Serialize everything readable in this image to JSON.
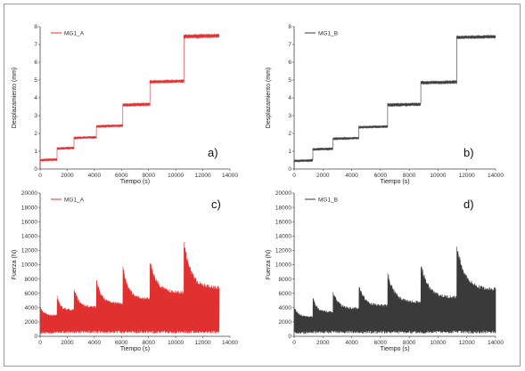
{
  "chart_data": [
    {
      "id": "a",
      "type": "line",
      "panel_label": "a)",
      "color": "#e03030",
      "xlabel": "Tiempo (s)",
      "ylabel": "Desplazamiento (mm)",
      "xlim": [
        0,
        14000
      ],
      "ylim": [
        0,
        8
      ],
      "xticks": [
        "0",
        "2000",
        "4000",
        "6000",
        "8000",
        "10000",
        "12000",
        "14000"
      ],
      "yticks": [
        "0",
        "1",
        "2",
        "3",
        "4",
        "5",
        "6",
        "7",
        "8"
      ],
      "legend_position": "top-left",
      "series": [
        {
          "name": "MG1_A",
          "steps": [
            {
              "t0": 0,
              "t1": 1250,
              "base": 0.5,
              "amp": 0.15
            },
            {
              "t0": 1250,
              "t1": 2500,
              "base": 1.15,
              "amp": 0.15
            },
            {
              "t0": 2500,
              "t1": 4150,
              "base": 1.75,
              "amp": 0.15
            },
            {
              "t0": 4150,
              "t1": 6100,
              "base": 2.4,
              "amp": 0.15
            },
            {
              "t0": 6100,
              "t1": 8100,
              "base": 3.6,
              "amp": 0.2
            },
            {
              "t0": 8100,
              "t1": 10600,
              "base": 4.9,
              "amp": 0.2
            },
            {
              "t0": 10600,
              "t1": 13200,
              "base": 7.45,
              "amp": 0.25
            }
          ]
        }
      ]
    },
    {
      "id": "b",
      "type": "line",
      "panel_label": "b)",
      "color": "#3a3a3a",
      "xlabel": "Tiempo (s)",
      "ylabel": "Desplazamiento (mm)",
      "xlim": [
        0,
        14000
      ],
      "ylim": [
        0,
        8
      ],
      "xticks": [
        "0",
        "2000",
        "4000",
        "6000",
        "8000",
        "10000",
        "12000",
        "14000"
      ],
      "yticks": [
        "0",
        "1",
        "2",
        "3",
        "4",
        "5",
        "6",
        "7",
        "8"
      ],
      "legend_position": "top-left",
      "series": [
        {
          "name": "MG1_B",
          "steps": [
            {
              "t0": 0,
              "t1": 1300,
              "base": 0.45,
              "amp": 0.15
            },
            {
              "t0": 1300,
              "t1": 2700,
              "base": 1.1,
              "amp": 0.15
            },
            {
              "t0": 2700,
              "t1": 4500,
              "base": 1.7,
              "amp": 0.15
            },
            {
              "t0": 4500,
              "t1": 6500,
              "base": 2.35,
              "amp": 0.15
            },
            {
              "t0": 6500,
              "t1": 8800,
              "base": 3.6,
              "amp": 0.2
            },
            {
              "t0": 8800,
              "t1": 11300,
              "base": 4.85,
              "amp": 0.2
            },
            {
              "t0": 11300,
              "t1": 14000,
              "base": 7.4,
              "amp": 0.2
            }
          ]
        }
      ]
    },
    {
      "id": "c",
      "type": "line",
      "panel_label": "c)",
      "color": "#e03030",
      "xlabel": "Tiempo (s)",
      "ylabel": "Fuerza (N)",
      "xlim": [
        0,
        14000
      ],
      "ylim": [
        0,
        20000
      ],
      "xticks": [
        "0",
        "2000",
        "4000",
        "6000",
        "8000",
        "10000",
        "12000",
        "14000"
      ],
      "yticks": [
        "0",
        "2000",
        "4000",
        "6000",
        "8000",
        "10000",
        "12000",
        "14000",
        "16000",
        "18000",
        "20000"
      ],
      "legend_position": "top-left",
      "series": [
        {
          "name": "MG1_A",
          "segments": [
            {
              "t0": 0,
              "t1": 1250,
              "peak": 4200,
              "top": 3000,
              "min": 600
            },
            {
              "t0": 1250,
              "t1": 2500,
              "peak": 5700,
              "top": 3800,
              "min": 700
            },
            {
              "t0": 2500,
              "t1": 4150,
              "peak": 6900,
              "top": 4200,
              "min": 700
            },
            {
              "t0": 4150,
              "t1": 6100,
              "peak": 7900,
              "top": 4700,
              "min": 700
            },
            {
              "t0": 6100,
              "t1": 8100,
              "peak": 9800,
              "top": 5400,
              "min": 700
            },
            {
              "t0": 8100,
              "t1": 10600,
              "peak": 10900,
              "top": 6300,
              "min": 700
            },
            {
              "t0": 10600,
              "t1": 13200,
              "peak": 13600,
              "top": 7000,
              "min": 700
            }
          ]
        }
      ]
    },
    {
      "id": "d",
      "type": "line",
      "panel_label": "d)",
      "color": "#3a3a3a",
      "xlabel": "Tiempo (s)",
      "ylabel": "Fuerza (N)",
      "xlim": [
        0,
        14000
      ],
      "ylim": [
        0,
        20000
      ],
      "xticks": [
        "0",
        "2000",
        "4000",
        "6000",
        "8000",
        "10000",
        "12000",
        "14000"
      ],
      "yticks": [
        "0",
        "2000",
        "4000",
        "6000",
        "8000",
        "10000",
        "12000",
        "14000",
        "16000",
        "18000",
        "20000"
      ],
      "legend_position": "top-left",
      "series": [
        {
          "name": "MG1_B",
          "segments": [
            {
              "t0": 0,
              "t1": 1300,
              "peak": 4200,
              "top": 2800,
              "min": 600
            },
            {
              "t0": 1300,
              "t1": 2700,
              "peak": 5500,
              "top": 3500,
              "min": 700
            },
            {
              "t0": 2700,
              "t1": 4500,
              "peak": 6400,
              "top": 4000,
              "min": 700
            },
            {
              "t0": 4500,
              "t1": 6500,
              "peak": 7300,
              "top": 4400,
              "min": 700
            },
            {
              "t0": 6500,
              "t1": 8800,
              "peak": 9000,
              "top": 4900,
              "min": 700
            },
            {
              "t0": 8800,
              "t1": 11300,
              "peak": 10400,
              "top": 5600,
              "min": 700
            },
            {
              "t0": 11300,
              "t1": 14000,
              "peak": 13100,
              "top": 6800,
              "min": 700
            }
          ]
        }
      ]
    }
  ]
}
